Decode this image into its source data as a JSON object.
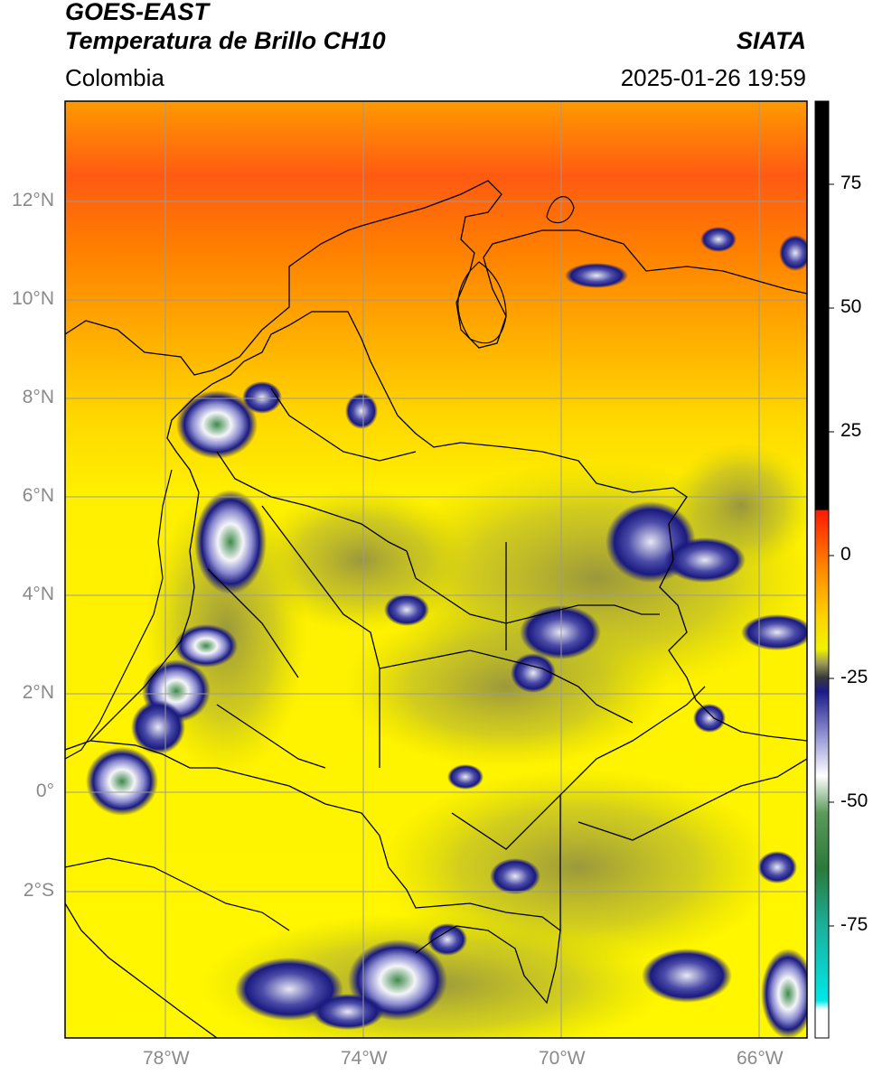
{
  "header": {
    "satellite": "GOES-EAST",
    "product": "Temperatura de Brillo CH10",
    "region": "Colombia",
    "agency": "SIATA",
    "datetime": "2025-01-26 19:59"
  },
  "map": {
    "lon_ticks": [
      "78°W",
      "74°W",
      "70°W",
      "66°W"
    ],
    "lat_ticks": [
      "12°N",
      "10°N",
      "8°N",
      "6°N",
      "4°N",
      "2°N",
      "0°",
      "2°S"
    ],
    "colors": {
      "warm_top": "#ff4a10",
      "orange": "#ffa600",
      "yellow": "#fff200",
      "olive": "#a6a83a",
      "navy": "#1a1a80",
      "white": "#f4f4f8",
      "green": "#3d8a4a",
      "border": "#000000",
      "grid": "#9a9a9a"
    }
  },
  "colorbar": {
    "ticks": [
      "75",
      "50",
      "25",
      "0",
      "-25",
      "-50",
      "-75"
    ],
    "values": [
      75,
      50,
      25,
      0,
      -25,
      -50,
      -75
    ]
  }
}
